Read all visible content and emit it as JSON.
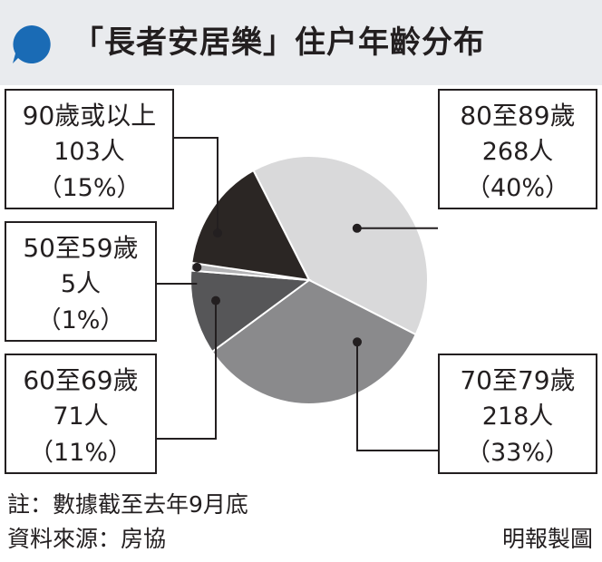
{
  "header": {
    "title": "「長者安居樂」住户年齡分布",
    "icon": "speech-bubble-icon",
    "icon_color": "#1a6bb5",
    "background": "#e9ebee"
  },
  "chart_data": {
    "type": "pie",
    "slices": [
      {
        "label": "80至89歲",
        "count": "268人",
        "percent": "（40%）",
        "value": 40,
        "color": "#d9d9da"
      },
      {
        "label": "70至79歲",
        "count": "218人",
        "percent": "（33%）",
        "value": 33,
        "color": "#8a8a8c"
      },
      {
        "label": "60至69歲",
        "count": "71人",
        "percent": "（11%）",
        "value": 11,
        "color": "#565658"
      },
      {
        "label": "50至59歲",
        "count": "5人",
        "percent": "（1%）",
        "value": 1,
        "color": "#b3b3b5"
      },
      {
        "label": "90歲或以上",
        "count": "103人",
        "percent": "（15%）",
        "value": 15,
        "color": "#2b2624"
      }
    ]
  },
  "footer": {
    "note": "註：數據截至去年9月底",
    "source": "資料來源：房協",
    "credit": "明報製圖"
  }
}
